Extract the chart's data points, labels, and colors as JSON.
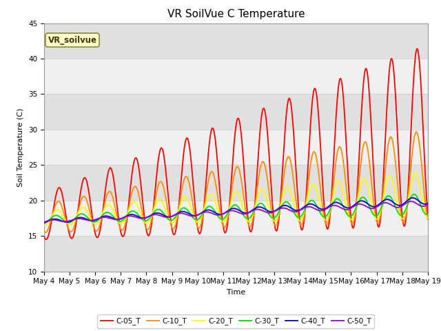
{
  "title": "VR SoilVue C Temperature",
  "xlabel": "Time",
  "ylabel": "Soil Temperature (C)",
  "ylim": [
    10,
    45
  ],
  "annotation": "VR_soilvue",
  "series_labels": [
    "C-05_T",
    "C-10_T",
    "C-20_T",
    "C-30_T",
    "C-40_T",
    "C-50_T"
  ],
  "series_colors": [
    "#ff0000",
    "#ff8c00",
    "#ffff00",
    "#00dd00",
    "#0000dd",
    "#9900cc"
  ],
  "xtick_labels": [
    "May 4",
    "May 5",
    "May 6",
    "May 7",
    "May 8",
    "May 9",
    "May 10",
    "May 11",
    "May 12",
    "May 13",
    "May 14",
    "May 15",
    "May 16",
    "May 17",
    "May 18",
    "May 19"
  ],
  "background_color": "#ffffff",
  "plot_bg_color": "#f0f0f0",
  "band_light": "#f0f0f0",
  "band_dark": "#e0e0e0",
  "title_fontsize": 11,
  "label_fontsize": 8,
  "tick_fontsize": 7.5
}
